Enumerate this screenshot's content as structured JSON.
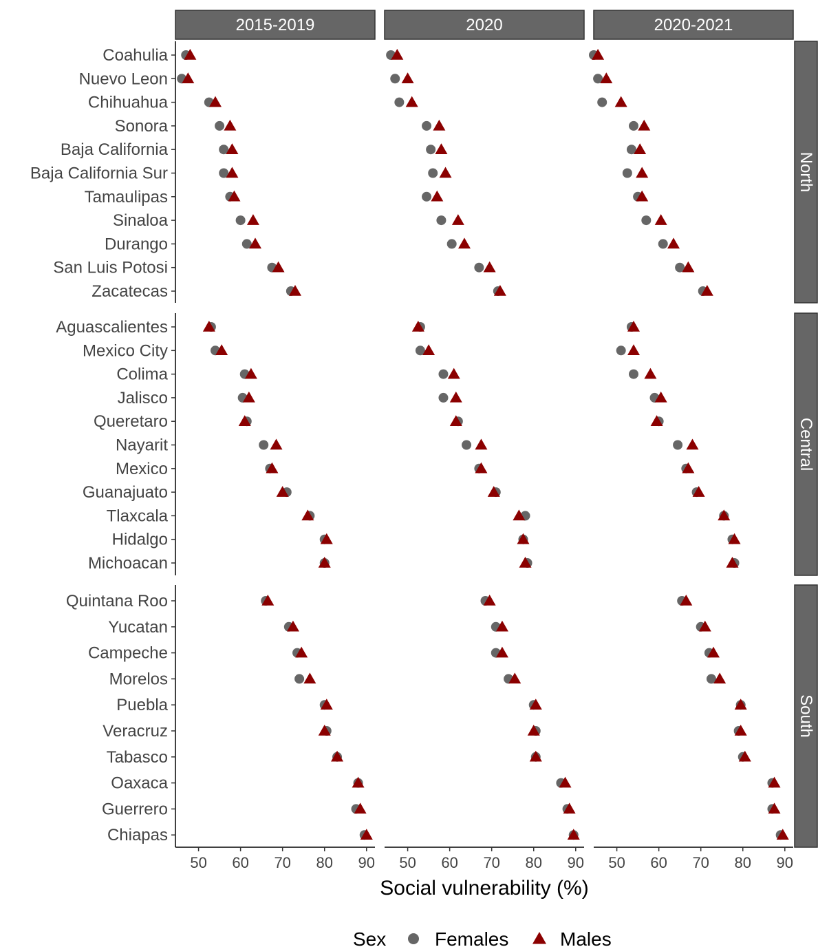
{
  "chart_data": {
    "type": "scatter",
    "title": "",
    "xlabel": "Social vulnerability (%)",
    "ylabel": "",
    "xlim": [
      44.5,
      92
    ],
    "xticks": [
      50,
      60,
      70,
      80,
      90
    ],
    "periods": [
      "2015-2019",
      "2020",
      "2020-2021"
    ],
    "legend": {
      "title": "Sex",
      "position": "bottom",
      "entries": [
        {
          "name": "Females",
          "shape": "circle",
          "color": "#666666"
        },
        {
          "name": "Males",
          "shape": "triangle",
          "color": "#8b0000"
        }
      ]
    },
    "regions": [
      {
        "name": "North",
        "states": [
          {
            "name": "Coahulia",
            "females": [
              47,
              46,
              44.5
            ],
            "males": [
              48,
              47.5,
              45.5
            ]
          },
          {
            "name": "Nuevo Leon",
            "females": [
              46,
              47,
              45.5
            ],
            "males": [
              47.5,
              50,
              47.5
            ]
          },
          {
            "name": "Chihuahua",
            "females": [
              52.5,
              48,
              46.5
            ],
            "males": [
              54,
              51,
              51
            ]
          },
          {
            "name": "Sonora",
            "females": [
              55,
              54.5,
              54
            ],
            "males": [
              57.5,
              57.5,
              56.5
            ]
          },
          {
            "name": "Baja California",
            "females": [
              56,
              55.5,
              53.5
            ],
            "males": [
              58,
              58,
              55.5
            ]
          },
          {
            "name": "Baja California Sur",
            "females": [
              56,
              56,
              52.5
            ],
            "males": [
              58,
              59,
              56
            ]
          },
          {
            "name": "Tamaulipas",
            "females": [
              57.5,
              54.5,
              55
            ],
            "males": [
              58.5,
              57,
              56
            ]
          },
          {
            "name": "Sinaloa",
            "females": [
              60,
              58,
              57
            ],
            "males": [
              63,
              62,
              60.5
            ]
          },
          {
            "name": "Durango",
            "females": [
              61.5,
              60.5,
              61
            ],
            "males": [
              63.5,
              63.5,
              63.5
            ]
          },
          {
            "name": "San Luis Potosi",
            "females": [
              67.5,
              67,
              65
            ],
            "males": [
              69,
              69.5,
              67
            ]
          },
          {
            "name": "Zacatecas",
            "females": [
              72,
              71.5,
              70.5
            ],
            "males": [
              73,
              72,
              71.5
            ]
          }
        ]
      },
      {
        "name": "Central",
        "states": [
          {
            "name": "Aguascalientes",
            "females": [
              53,
              53,
              53.5
            ],
            "males": [
              52.5,
              52.5,
              54
            ]
          },
          {
            "name": "Mexico City",
            "females": [
              54,
              53,
              51
            ],
            "males": [
              55.5,
              55,
              54
            ]
          },
          {
            "name": "Colima",
            "females": [
              61,
              58.5,
              54
            ],
            "males": [
              62.5,
              61,
              58
            ]
          },
          {
            "name": "Jalisco",
            "females": [
              60.5,
              58.5,
              59
            ],
            "males": [
              62,
              61.5,
              60.5
            ]
          },
          {
            "name": "Queretaro",
            "females": [
              61.5,
              62,
              60
            ],
            "males": [
              61,
              61.5,
              59.5
            ]
          },
          {
            "name": "Nayarit",
            "females": [
              65.5,
              64,
              64.5
            ],
            "males": [
              68.5,
              67.5,
              68
            ]
          },
          {
            "name": "Mexico",
            "females": [
              67,
              67,
              66.5
            ],
            "males": [
              67.5,
              67.5,
              67
            ]
          },
          {
            "name": "Guanajuato",
            "females": [
              71,
              71,
              69
            ],
            "males": [
              70,
              70.5,
              69.5
            ]
          },
          {
            "name": "Tlaxcala",
            "females": [
              76.5,
              78,
              75.5
            ],
            "males": [
              76,
              76.5,
              75.5
            ]
          },
          {
            "name": "Hidalgo",
            "females": [
              80,
              77.5,
              77.5
            ],
            "males": [
              80.5,
              77.5,
              78
            ]
          },
          {
            "name": "Michoacan",
            "females": [
              80,
              78.5,
              78
            ],
            "males": [
              80,
              78,
              77.5
            ]
          }
        ]
      },
      {
        "name": "South",
        "states": [
          {
            "name": "Quintana Roo",
            "females": [
              66,
              68.5,
              65.5
            ],
            "males": [
              66.5,
              69.5,
              66.5
            ]
          },
          {
            "name": "Yucatan",
            "females": [
              71.5,
              71,
              70
            ],
            "males": [
              72.5,
              72.5,
              71
            ]
          },
          {
            "name": "Campeche",
            "females": [
              73.5,
              71,
              72
            ],
            "males": [
              74.5,
              72.5,
              73
            ]
          },
          {
            "name": "Morelos",
            "females": [
              74,
              74,
              72.5
            ],
            "males": [
              76.5,
              75.5,
              74.5
            ]
          },
          {
            "name": "Puebla",
            "females": [
              80,
              80,
              79.5
            ],
            "males": [
              80.5,
              80.5,
              79.5
            ]
          },
          {
            "name": "Veracruz",
            "females": [
              80.5,
              80.5,
              79
            ],
            "males": [
              80,
              80,
              79.5
            ]
          },
          {
            "name": "Tabasco",
            "females": [
              83,
              80.5,
              80
            ],
            "males": [
              83,
              80.5,
              80.5
            ]
          },
          {
            "name": "Oaxaca",
            "females": [
              88,
              86.5,
              87
            ],
            "males": [
              88,
              87.5,
              87.5
            ]
          },
          {
            "name": "Guerrero",
            "females": [
              87.5,
              88,
              87
            ],
            "males": [
              88.5,
              88.5,
              87.5
            ]
          },
          {
            "name": "Chiapas",
            "females": [
              89.5,
              89.5,
              89
            ],
            "males": [
              90,
              89.5,
              89.5
            ]
          }
        ]
      }
    ]
  }
}
